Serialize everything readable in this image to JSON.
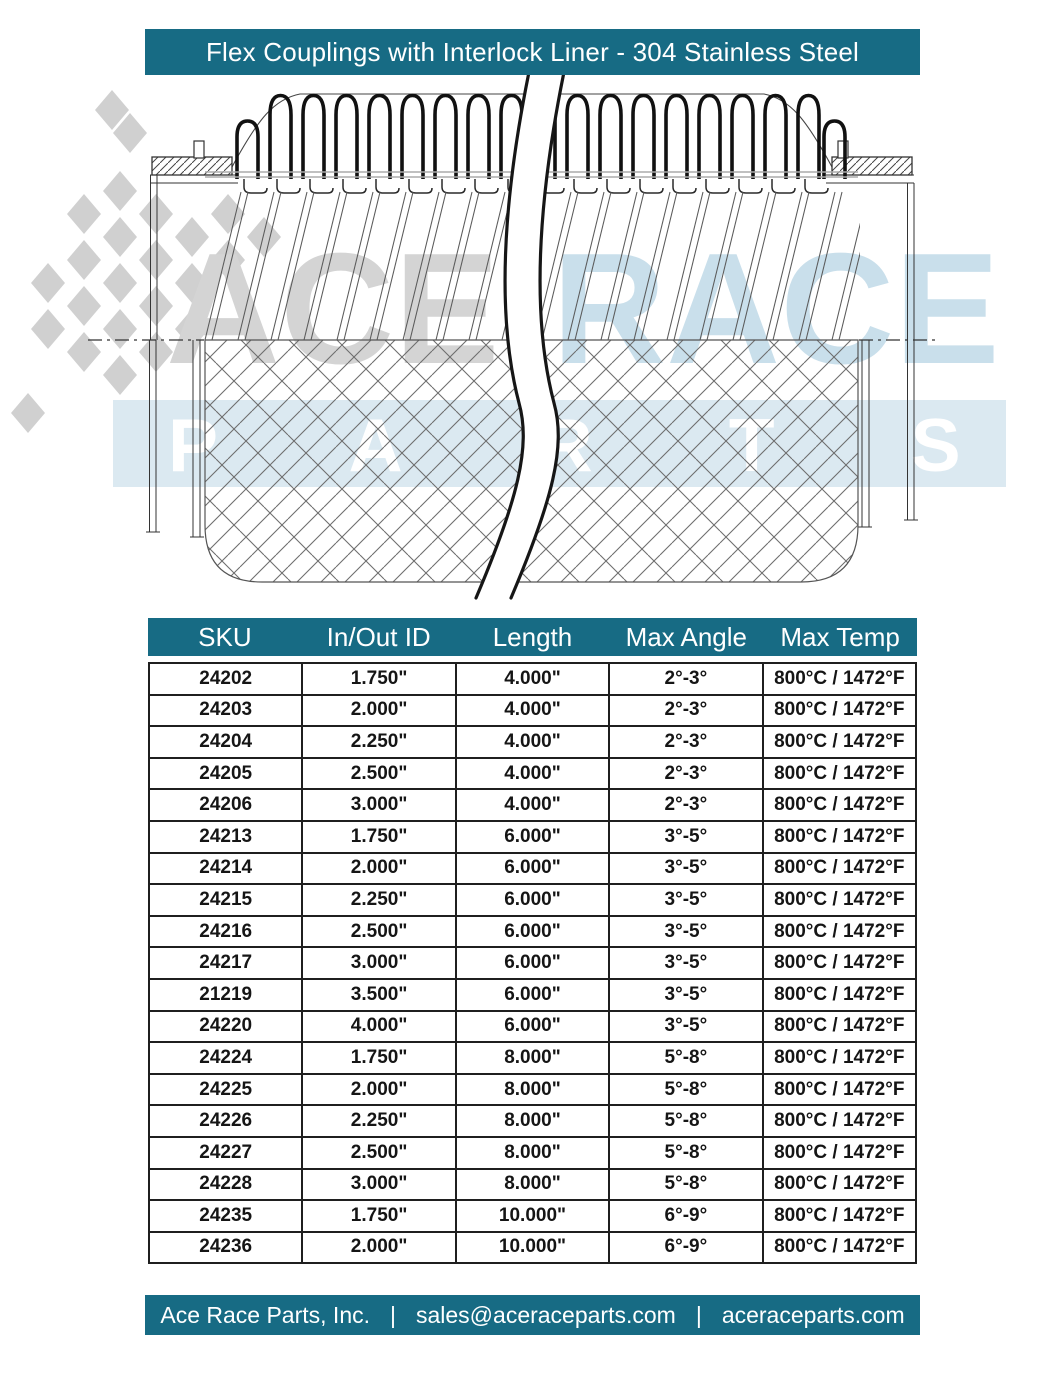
{
  "header": {
    "title": "Flex Couplings with Interlock Liner - 304 Stainless Steel"
  },
  "watermark": {
    "left_text": "ACE",
    "right_text": "RACE",
    "band_text": "PARTS"
  },
  "table": {
    "columns": [
      "SKU",
      "In/Out ID",
      "Length",
      "Max Angle",
      "Max Temp"
    ],
    "rows": [
      [
        "24202",
        "1.750\"",
        "4.000\"",
        "2°-3°",
        "800°C / 1472°F"
      ],
      [
        "24203",
        "2.000\"",
        "4.000\"",
        "2°-3°",
        "800°C / 1472°F"
      ],
      [
        "24204",
        "2.250\"",
        "4.000\"",
        "2°-3°",
        "800°C / 1472°F"
      ],
      [
        "24205",
        "2.500\"",
        "4.000\"",
        "2°-3°",
        "800°C / 1472°F"
      ],
      [
        "24206",
        "3.000\"",
        "4.000\"",
        "2°-3°",
        "800°C / 1472°F"
      ],
      [
        "24213",
        "1.750\"",
        "6.000\"",
        "3°-5°",
        "800°C / 1472°F"
      ],
      [
        "24214",
        "2.000\"",
        "6.000\"",
        "3°-5°",
        "800°C / 1472°F"
      ],
      [
        "24215",
        "2.250\"",
        "6.000\"",
        "3°-5°",
        "800°C / 1472°F"
      ],
      [
        "24216",
        "2.500\"",
        "6.000\"",
        "3°-5°",
        "800°C / 1472°F"
      ],
      [
        "24217",
        "3.000\"",
        "6.000\"",
        "3°-5°",
        "800°C / 1472°F"
      ],
      [
        "21219",
        "3.500\"",
        "6.000\"",
        "3°-5°",
        "800°C / 1472°F"
      ],
      [
        "24220",
        "4.000\"",
        "6.000\"",
        "3°-5°",
        "800°C / 1472°F"
      ],
      [
        "24224",
        "1.750\"",
        "8.000\"",
        "5°-8°",
        "800°C / 1472°F"
      ],
      [
        "24225",
        "2.000\"",
        "8.000\"",
        "5°-8°",
        "800°C / 1472°F"
      ],
      [
        "24226",
        "2.250\"",
        "8.000\"",
        "5°-8°",
        "800°C / 1472°F"
      ],
      [
        "24227",
        "2.500\"",
        "8.000\"",
        "5°-8°",
        "800°C / 1472°F"
      ],
      [
        "24228",
        "3.000\"",
        "8.000\"",
        "5°-8°",
        "800°C / 1472°F"
      ],
      [
        "24235",
        "1.750\"",
        "10.000\"",
        "6°-9°",
        "800°C / 1472°F"
      ],
      [
        "24236",
        "2.000\"",
        "10.000\"",
        "6°-9°",
        "800°C / 1472°F"
      ]
    ]
  },
  "footer": {
    "company": "Ace Race Parts, Inc.",
    "separator": "|",
    "email": "sales@aceraceparts.com",
    "website": "aceraceparts.com"
  },
  "colors": {
    "teal": "#176b84",
    "watermark_gray": "#d4d4d4",
    "watermark_blue": "#c9dfeb",
    "band_blue": "#dbe9f1",
    "band_letter": "#ffffff",
    "line_dark": "#161616"
  }
}
